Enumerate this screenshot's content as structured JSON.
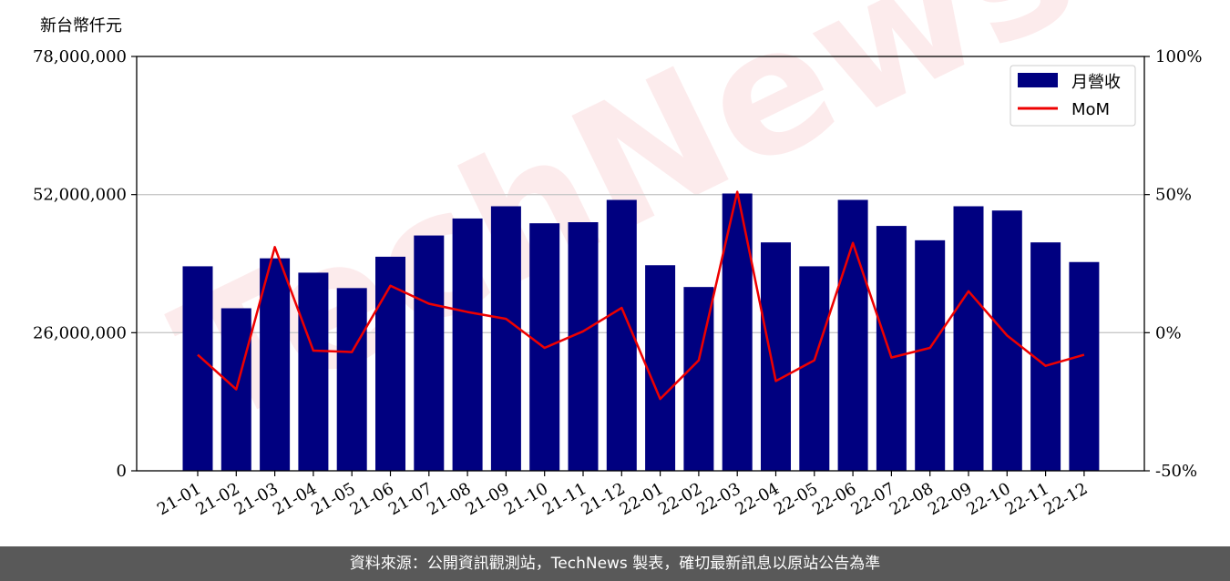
{
  "watermark": "TechNews",
  "footer": {
    "source": "資料來源：公開資訊觀測站，TechNews 製表，確切最新訊息以原站公告為準"
  },
  "chart_data": {
    "type": "bar",
    "y_unit_label": "新台幣仟元",
    "categories": [
      "21-01",
      "21-02",
      "21-03",
      "21-04",
      "21-05",
      "21-06",
      "21-07",
      "21-08",
      "21-09",
      "21-10",
      "21-11",
      "21-12",
      "22-01",
      "22-02",
      "22-03",
      "22-04",
      "22-05",
      "22-06",
      "22-07",
      "22-08",
      "22-09",
      "22-10",
      "22-11",
      "22-12"
    ],
    "series": [
      {
        "name": "月營收",
        "axis": "left",
        "kind": "bar",
        "color": "#000080",
        "values": [
          38500000,
          30600000,
          40000000,
          37300000,
          34400000,
          40300000,
          44300000,
          47500000,
          49800000,
          46600000,
          46800000,
          51000000,
          38700000,
          34600000,
          52200000,
          43000000,
          38500000,
          51000000,
          46100000,
          43400000,
          49800000,
          49000000,
          43000000,
          39300000
        ]
      },
      {
        "name": "MoM",
        "axis": "right",
        "kind": "line",
        "color": "#ee0000",
        "values": [
          -8,
          -20.5,
          31,
          -6.5,
          -7,
          17,
          10.5,
          7.5,
          5,
          -5.5,
          0.5,
          9,
          -24,
          -10,
          51,
          -17.5,
          -10,
          32.5,
          -9,
          -5.5,
          15,
          -1,
          -12,
          -8
        ]
      }
    ],
    "y_left": {
      "ylim": [
        0,
        78000000
      ],
      "ticks": [
        0,
        26000000,
        52000000,
        78000000
      ],
      "tick_labels": [
        "0",
        "26,000,000",
        "52,000,000",
        "78,000,000"
      ]
    },
    "y_right": {
      "ylim": [
        -50,
        100
      ],
      "ticks": [
        -50,
        0,
        50,
        100
      ],
      "tick_labels": [
        "-50%",
        "0%",
        "50%",
        "100%"
      ]
    },
    "grid": "horizontal",
    "legend_position": "top-right"
  }
}
